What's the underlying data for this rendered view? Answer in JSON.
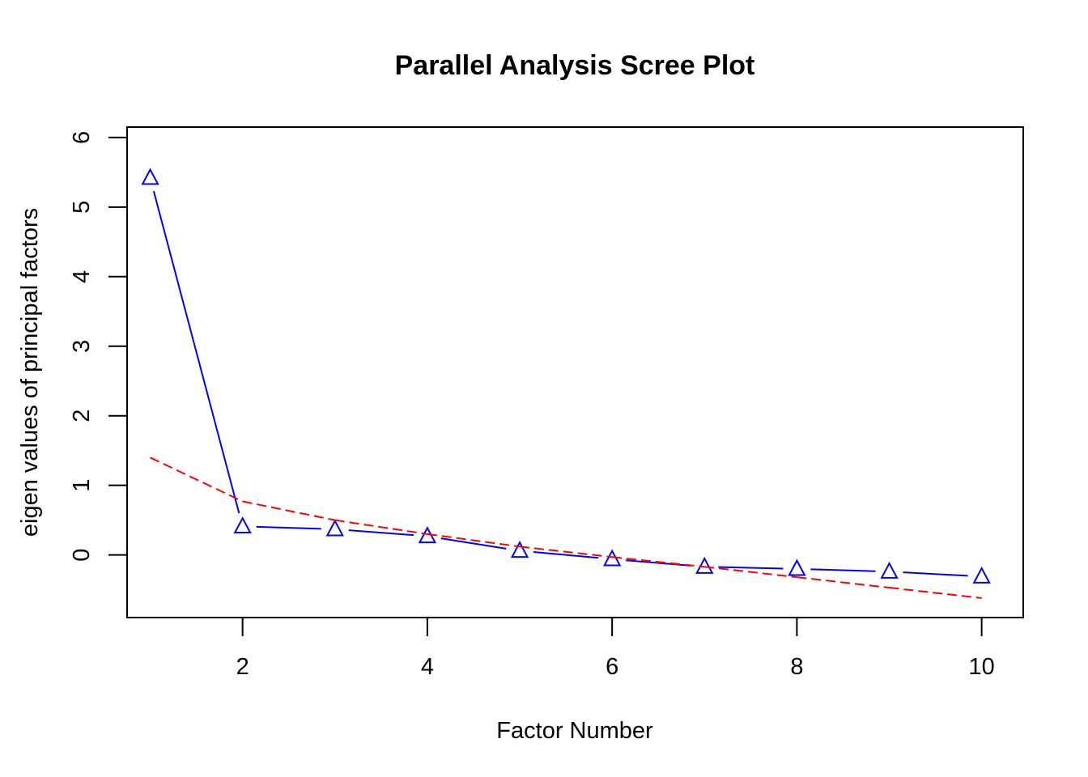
{
  "chart_data": {
    "type": "line",
    "title": "Parallel Analysis Scree Plot",
    "xlabel": "Factor Number",
    "ylabel": "eigen values of principal factors",
    "xlim": [
      0.75,
      10.45
    ],
    "ylim": [
      -0.9,
      6.15
    ],
    "x_ticks": [
      2,
      4,
      6,
      8,
      10
    ],
    "y_ticks": [
      0,
      1,
      2,
      3,
      4,
      5,
      6
    ],
    "grid": false,
    "legend": "none",
    "x": [
      1,
      2,
      3,
      4,
      5,
      6,
      7,
      8,
      9,
      10
    ],
    "series": [
      {
        "style": "solid",
        "marker": "triangle",
        "color": "#0000ff",
        "values": [
          5.42,
          0.41,
          0.37,
          0.27,
          0.06,
          -0.06,
          -0.17,
          -0.2,
          -0.24,
          -0.31
        ]
      },
      {
        "style": "dashed",
        "marker": "none",
        "color": "#ff0000",
        "values": [
          1.4,
          0.77,
          0.5,
          0.3,
          0.12,
          -0.03,
          -0.17,
          -0.32,
          -0.47,
          -0.62
        ]
      }
    ]
  }
}
